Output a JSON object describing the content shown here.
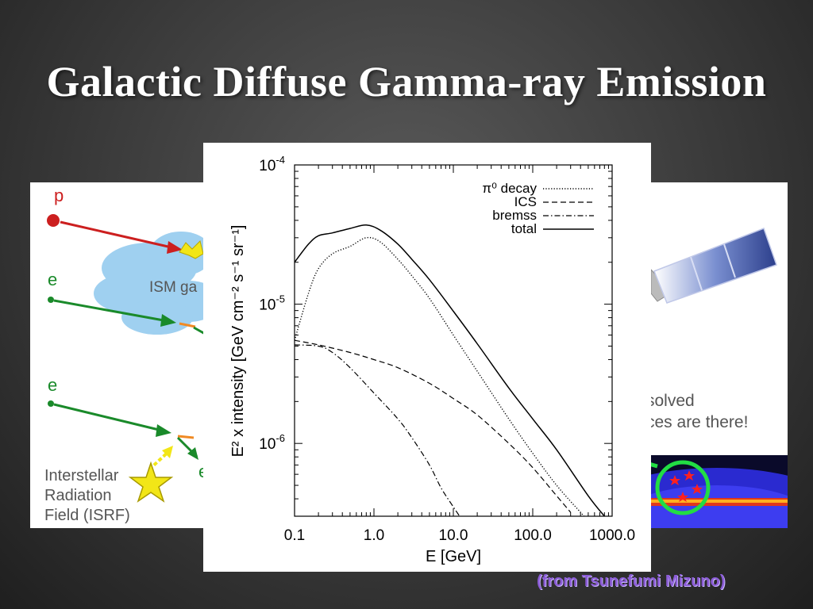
{
  "slide": {
    "title": "Galactic Diffuse Gamma-ray Emission",
    "credit": "(from Tsunefumi Mizuno)"
  },
  "left_diagram": {
    "particle_p": "p",
    "particle_e1": "e",
    "particle_e2": "e",
    "particle_e3": "e",
    "cloud_label": "ISM ga",
    "isrf_line1": "Interstellar",
    "isrf_line2": "Radiation",
    "isrf_line3": "Field (ISRF)"
  },
  "right_diagram": {
    "text_line1": "solved",
    "text_line2": "ces are there!"
  },
  "colors": {
    "proton": "#cc1f1f",
    "electron": "#1a8a2a",
    "cloud": "#9fd0f0",
    "star": "#f2e617",
    "credit": "#8b5cd6"
  },
  "chart_data": {
    "type": "line",
    "xlabel": "E [GeV]",
    "ylabel": "E² x intensity [GeV cm⁻² s⁻¹ sr⁻¹]",
    "x_scale": "log",
    "y_scale": "log",
    "xlim": [
      0.1,
      1000
    ],
    "ylim": [
      3e-07,
      0.0001
    ],
    "x_tick_labels": [
      "0.1",
      "1.0",
      "10.0",
      "100.0",
      "1000.0"
    ],
    "x_ticks": [
      0.1,
      1,
      10,
      100,
      1000
    ],
    "y_tick_base": [
      "10",
      "10",
      "10"
    ],
    "y_tick_exp": [
      "-6",
      "-5",
      "-4"
    ],
    "y_ticks": [
      1e-06,
      1e-05,
      0.0001
    ],
    "legend_position": "top-right",
    "series": [
      {
        "name": "π⁰ decay",
        "style": "dotted",
        "x": [
          0.1,
          0.15,
          0.2,
          0.3,
          0.5,
          0.8,
          1.2,
          2,
          3,
          5,
          10,
          20,
          50,
          100,
          200,
          400,
          500
        ],
        "y": [
          5.5e-06,
          1.2e-05,
          1.8e-05,
          2.3e-05,
          2.6e-05,
          3e-05,
          2.8e-05,
          2.1e-05,
          1.6e-05,
          1.1e-05,
          6e-06,
          3.3e-06,
          1.5e-06,
          8.5e-07,
          5e-07,
          3.2e-07,
          2.8e-07
        ]
      },
      {
        "name": "ICS",
        "style": "dashed",
        "x": [
          0.1,
          0.2,
          0.5,
          1,
          2,
          5,
          10,
          20,
          50,
          100,
          200,
          300
        ],
        "y": [
          5.5e-06,
          5.1e-06,
          4.5e-06,
          4e-06,
          3.5e-06,
          2.7e-06,
          2.1e-06,
          1.6e-06,
          1e-06,
          6.7e-07,
          4.2e-07,
          3.2e-07
        ]
      },
      {
        "name": "bremss",
        "style": "dashdot",
        "x": [
          0.1,
          0.2,
          0.3,
          0.5,
          1,
          2,
          3,
          5,
          7,
          10,
          12
        ],
        "y": [
          5.1e-06,
          5e-06,
          4.5e-06,
          3.5e-06,
          2.3e-06,
          1.5e-06,
          1.1e-06,
          7e-07,
          4.8e-07,
          3.5e-07,
          3e-07
        ]
      },
      {
        "name": "total",
        "style": "solid",
        "x": [
          0.1,
          0.15,
          0.2,
          0.3,
          0.5,
          0.8,
          1.2,
          2,
          3,
          5,
          10,
          20,
          50,
          100,
          200,
          500,
          800
        ],
        "y": [
          2e-05,
          2.7e-05,
          3.1e-05,
          3.25e-05,
          3.5e-05,
          3.7e-05,
          3.4e-05,
          2.7e-05,
          2.1e-05,
          1.5e-05,
          8.9e-06,
          5.2e-06,
          2.5e-06,
          1.5e-06,
          9e-07,
          4.2e-07,
          3e-07
        ]
      }
    ]
  }
}
